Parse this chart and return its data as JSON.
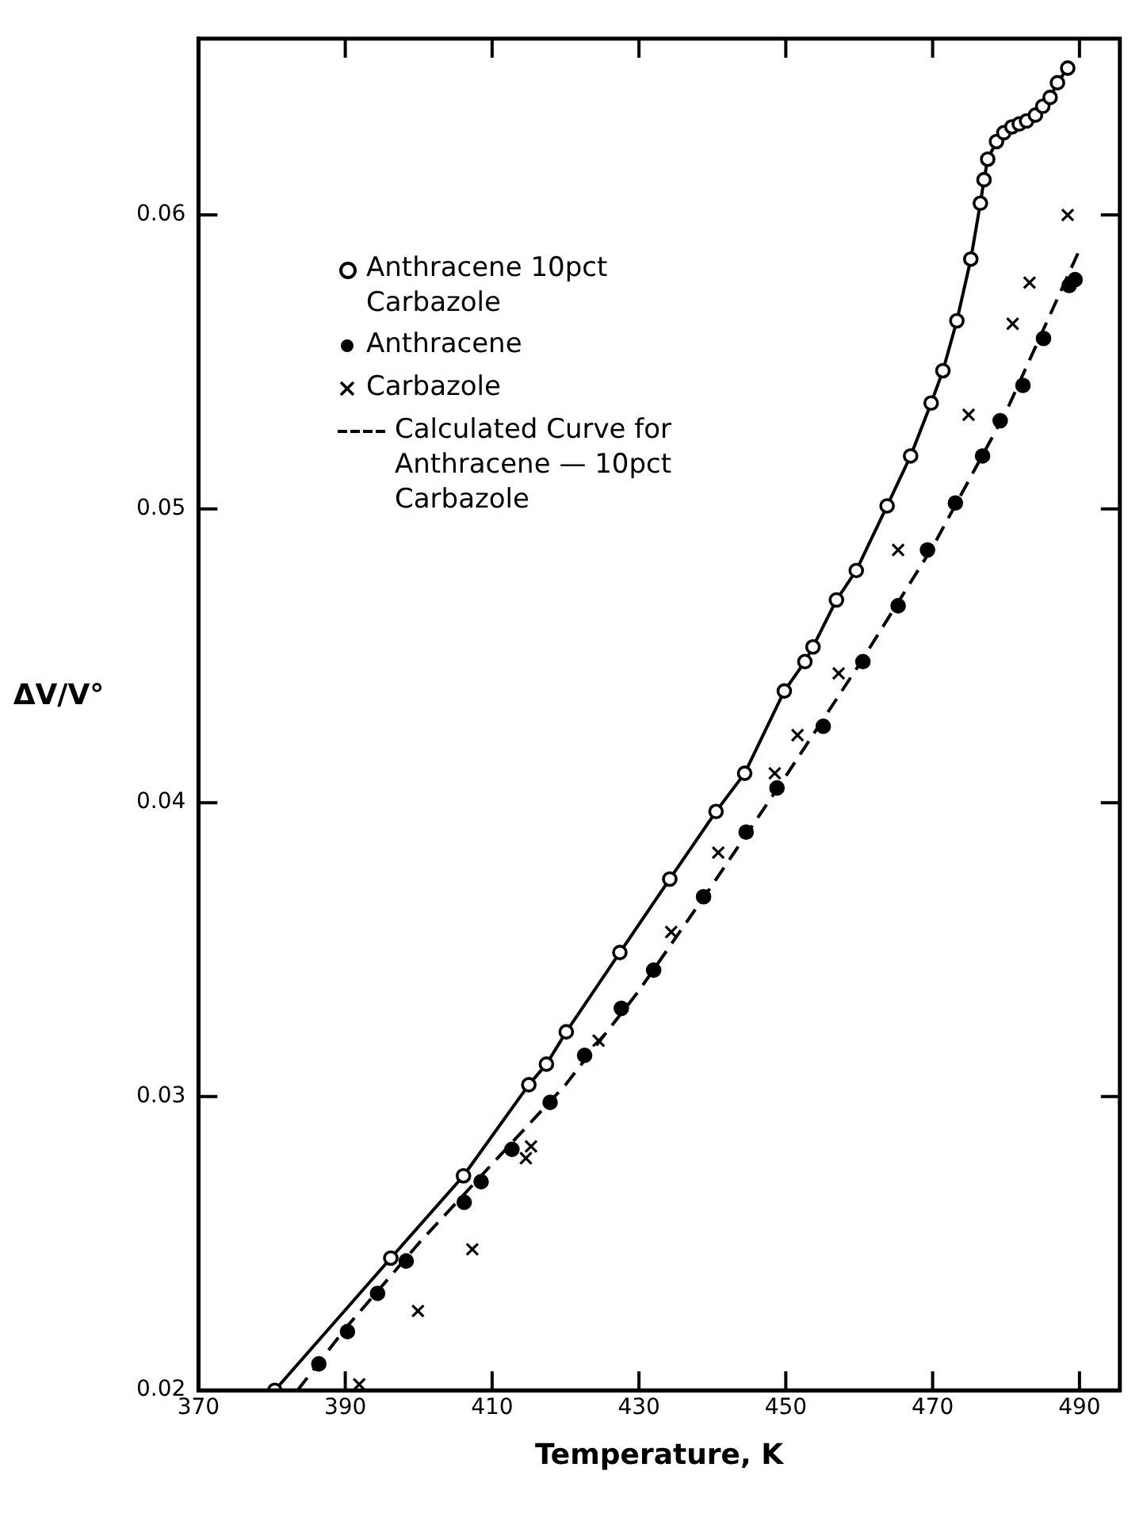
{
  "chart_data": {
    "type": "scatter",
    "xlabel": "Temperature, K",
    "ylabel": "ΔV/V°",
    "xlim": [
      370,
      495.5
    ],
    "ylim": [
      0.02,
      0.066
    ],
    "xticks": [
      370,
      390,
      410,
      430,
      450,
      470,
      490
    ],
    "yticks": [
      0.02,
      0.03,
      0.04,
      0.05,
      0.06
    ],
    "grid": false,
    "legend": "top left",
    "series": [
      {
        "name": "Anthracene 10pct Carbazole",
        "type": "line",
        "marker": "circle",
        "line_style": "solid",
        "color": "#000000",
        "x": [
          380.4,
          396.2,
          406.1,
          415,
          417.4,
          420.1,
          427.4,
          434.2,
          440.5,
          444.4,
          449.8,
          452.6,
          453.7,
          456.9,
          459.6,
          463.8,
          467,
          469.8,
          471.4,
          473.3,
          475.2,
          476.5,
          477,
          477.5,
          478.7,
          479.7,
          480.8,
          481.8,
          482.8,
          484,
          485,
          486,
          487,
          488.4
        ],
        "values": [
          0.02,
          0.0245,
          0.0273,
          0.0304,
          0.0311,
          0.0322,
          0.0349,
          0.0374,
          0.0397,
          0.041,
          0.0438,
          0.0448,
          0.0453,
          0.0469,
          0.0479,
          0.0501,
          0.0518,
          0.0536,
          0.0547,
          0.0564,
          0.0585,
          0.0604,
          0.0612,
          0.0619,
          0.0625,
          0.0628,
          0.063,
          0.0631,
          0.0632,
          0.0634,
          0.0637,
          0.064,
          0.0645,
          0.065
        ]
      },
      {
        "name": "Anthracene",
        "type": "scatter",
        "marker": "circle",
        "color": "#000000",
        "x": [
          386.4,
          390.3,
          394.4,
          398.3,
          406.2,
          408.5,
          412.7,
          417.9,
          422.6,
          427.6,
          432,
          438.8,
          444.6,
          448.8,
          455.1,
          460.5,
          465.3,
          469.3,
          473.1,
          476.8,
          479.2,
          482.3,
          485.1,
          488.6,
          489.4
        ],
        "values": [
          0.0209,
          0.022,
          0.0233,
          0.0244,
          0.0264,
          0.0271,
          0.0282,
          0.0298,
          0.0314,
          0.033,
          0.0343,
          0.0368,
          0.039,
          0.0405,
          0.0426,
          0.0448,
          0.0467,
          0.0486,
          0.0502,
          0.0518,
          0.053,
          0.0542,
          0.0558,
          0.0576,
          0.0578
        ]
      },
      {
        "name": "Carbazole",
        "type": "scatter",
        "marker": "cross",
        "color": "#000000",
        "x": [
          391.9,
          399.9,
          407.3,
          414.6,
          415.3,
          424.5,
          434.4,
          440.8,
          448.5,
          451.6,
          457.2,
          465.3,
          474.9,
          480.9,
          483.2,
          488.4
        ],
        "values": [
          0.0202,
          0.0227,
          0.0248,
          0.0279,
          0.0283,
          0.0319,
          0.0356,
          0.0383,
          0.041,
          0.0423,
          0.0444,
          0.0486,
          0.0532,
          0.0563,
          0.0577,
          0.06
        ]
      },
      {
        "name": "Calculated Curve for Anthracene — 10pct Carbazole",
        "type": "line",
        "marker": "none",
        "line_style": "dashed",
        "color": "#000000",
        "x": [
          383.5,
          390,
          400,
          410,
          420,
          430,
          440,
          450,
          460,
          470,
          480,
          489.8
        ],
        "values": [
          0.02,
          0.0221,
          0.025,
          0.0277,
          0.0304,
          0.0336,
          0.0372,
          0.0409,
          0.0447,
          0.0487,
          0.0533,
          0.0587
        ]
      }
    ]
  }
}
